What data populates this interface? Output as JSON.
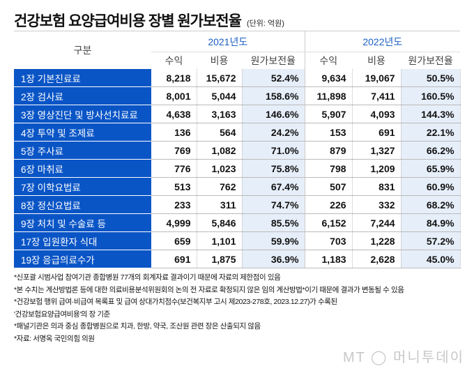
{
  "title": "건강보험 요양급여비용 장별 원가보전율",
  "unit": "(단위: 억원)",
  "chart_data": {
    "type": "table",
    "row_header": "구분",
    "years": [
      "2021년도",
      "2022년도"
    ],
    "sub_headers": [
      "수익",
      "비용",
      "원가보전율"
    ],
    "rows": [
      {
        "label": "1장 기본진료료",
        "v": [
          "8,218",
          "15,672",
          "52.4%",
          "9,634",
          "19,067",
          "50.5%"
        ]
      },
      {
        "label": "2장 검사료",
        "v": [
          "8,001",
          "5,044",
          "158.6%",
          "11,898",
          "7,411",
          "160.5%"
        ]
      },
      {
        "label": "3장 영상진단 및 방사선치료료",
        "v": [
          "4,638",
          "3,163",
          "146.6%",
          "5,907",
          "4,093",
          "144.3%"
        ]
      },
      {
        "label": "4장 투약 및 조제료",
        "v": [
          "136",
          "564",
          "24.2%",
          "153",
          "691",
          "22.1%"
        ]
      },
      {
        "label": "5장 주사료",
        "v": [
          "769",
          "1,082",
          "71.0%",
          "879",
          "1,327",
          "66.2%"
        ]
      },
      {
        "label": "6장 마취료",
        "v": [
          "776",
          "1,023",
          "75.8%",
          "798",
          "1,209",
          "65.9%"
        ]
      },
      {
        "label": "7장 이학요법료",
        "v": [
          "513",
          "762",
          "67.4%",
          "507",
          "831",
          "60.9%"
        ]
      },
      {
        "label": "8장 정신요법료",
        "v": [
          "233",
          "311",
          "74.7%",
          "226",
          "332",
          "68.2%"
        ]
      },
      {
        "label": "9장 처치 및 수술료 등",
        "v": [
          "4,999",
          "5,846",
          "85.5%",
          "6,152",
          "7,244",
          "84.9%"
        ]
      },
      {
        "label": "17장 입원환자 식대",
        "v": [
          "659",
          "1,101",
          "59.9%",
          "703",
          "1,228",
          "57.2%"
        ]
      },
      {
        "label": "19장 응급의료수가",
        "v": [
          "691",
          "1,875",
          "36.9%",
          "1,183",
          "2,628",
          "45.0%"
        ]
      }
    ]
  },
  "notes": [
    "*신포괄 시범사업 참여기관 종합병원 77개의 회계자료 결과이기 때문에 자료의 제한점이 있음",
    "*본 수치는 계산방법론 등에 대한 의료비용분석위원회의 논의 전 자료로 확정되지 않은 임의 계산방법*이기 때문에 결과가 변동될 수 있음",
    "*건강보험 행위 급여·비급여 목록표 및 급여 상대가치점수(보건복지부 고시 제2023-278호, 2023.12.27)가 수록된",
    "'건강보험요양급여비용'의 장 기준",
    "*패널기관은 의과 중심 종합병원으로 치과, 한방, 약국, 조산원 관련 장은 산출되지 않음",
    "*자료: 서명옥 국민의힘 의원"
  ],
  "logo": "MT ◯ 머니투데이",
  "colors": {
    "label_bg": "#0a55c6",
    "rate_bg": "#e6eef9",
    "year": "#1a5fc2"
  }
}
